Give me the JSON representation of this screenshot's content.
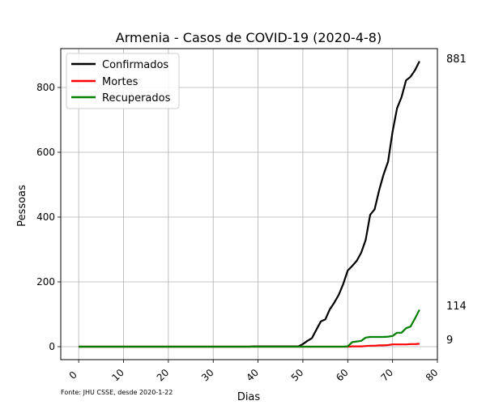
{
  "chart_data": {
    "type": "line",
    "title": "Armenia - Casos de COVID-19 (2020-4-8)",
    "xlabel": "Dias",
    "ylabel": "Pessoas",
    "xlim": [
      -4,
      80
    ],
    "ylim": [
      -40,
      920
    ],
    "x_ticks": [
      0,
      10,
      20,
      30,
      40,
      50,
      60,
      70,
      80
    ],
    "y_ticks": [
      0,
      200,
      400,
      600,
      800
    ],
    "grid": true,
    "legend_position": "top-left",
    "source_note": "Fonte: JHU CSSE, desde 2020-1-22",
    "end_labels": [
      "881",
      "114",
      "9"
    ],
    "series": [
      {
        "name": "Confirmados",
        "color": "#000000",
        "points": [
          [
            0,
            0
          ],
          [
            38,
            0
          ],
          [
            39,
            1
          ],
          [
            48,
            1
          ],
          [
            49,
            1
          ],
          [
            50,
            8
          ],
          [
            51,
            18
          ],
          [
            52,
            26
          ],
          [
            53,
            52
          ],
          [
            54,
            78
          ],
          [
            55,
            84
          ],
          [
            56,
            115
          ],
          [
            57,
            136
          ],
          [
            58,
            160
          ],
          [
            59,
            194
          ],
          [
            60,
            235
          ],
          [
            61,
            249
          ],
          [
            62,
            265
          ],
          [
            63,
            290
          ],
          [
            64,
            329
          ],
          [
            65,
            407
          ],
          [
            66,
            424
          ],
          [
            67,
            482
          ],
          [
            68,
            532
          ],
          [
            69,
            571
          ],
          [
            70,
            663
          ],
          [
            71,
            736
          ],
          [
            72,
            770
          ],
          [
            73,
            822
          ],
          [
            74,
            833
          ],
          [
            75,
            853
          ],
          [
            76,
            881
          ]
        ]
      },
      {
        "name": "Mortes",
        "color": "#ff0000",
        "points": [
          [
            0,
            0
          ],
          [
            60,
            0
          ],
          [
            61,
            1
          ],
          [
            63,
            1
          ],
          [
            64,
            2
          ],
          [
            65,
            3
          ],
          [
            66,
            3
          ],
          [
            67,
            4
          ],
          [
            68,
            4
          ],
          [
            69,
            5
          ],
          [
            70,
            7
          ],
          [
            71,
            7
          ],
          [
            72,
            7
          ],
          [
            73,
            7
          ],
          [
            74,
            8
          ],
          [
            75,
            8
          ],
          [
            76,
            9
          ]
        ]
      },
      {
        "name": "Recuperados",
        "color": "#008000",
        "points": [
          [
            0,
            0
          ],
          [
            59,
            0
          ],
          [
            60,
            1
          ],
          [
            61,
            14
          ],
          [
            62,
            16
          ],
          [
            63,
            18
          ],
          [
            64,
            28
          ],
          [
            65,
            30
          ],
          [
            66,
            30
          ],
          [
            67,
            30
          ],
          [
            68,
            30
          ],
          [
            69,
            31
          ],
          [
            70,
            33
          ],
          [
            71,
            43
          ],
          [
            72,
            43
          ],
          [
            73,
            57
          ],
          [
            74,
            62
          ],
          [
            75,
            87
          ],
          [
            76,
            114
          ]
        ]
      }
    ]
  }
}
